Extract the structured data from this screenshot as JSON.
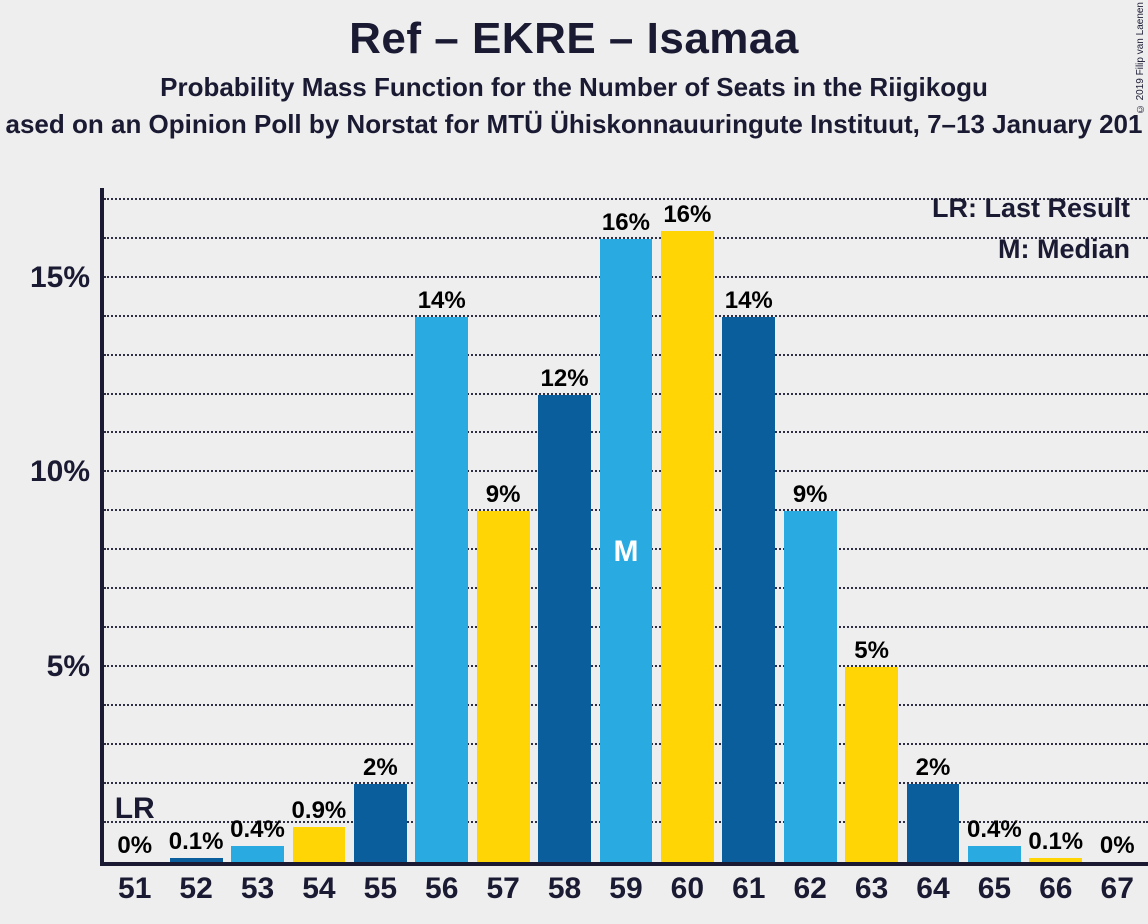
{
  "titles": {
    "main": "Ref – EKRE – Isamaa",
    "sub1": "Probability Mass Function for the Number of Seats in the Riigikogu",
    "sub2": "ased on an Opinion Poll by Norstat for MTÜ Ühiskonnauuringute Instituut, 7–13 January 201"
  },
  "legend": {
    "lr": "LR: Last Result",
    "m": "M: Median"
  },
  "annotations": {
    "lr_text": "LR",
    "m_text": "M"
  },
  "copyright": "© 2019 Filip van Laenen",
  "chart": {
    "type": "bar",
    "background_color": "#eeeeee",
    "axis_color": "#1a1a33",
    "grid_color": "#1a1a33",
    "y_max_percent": 17.3,
    "y_ticks": [
      {
        "value": 5,
        "label": "5%"
      },
      {
        "value": 10,
        "label": "10%"
      },
      {
        "value": 15,
        "label": "15%"
      }
    ],
    "y_minor_step": 1,
    "colors": {
      "dark": "#0b5e9c",
      "light": "#29abe2",
      "yellow": "#ffd506"
    },
    "lr_category": "51",
    "m_category": "59",
    "bars": [
      {
        "x": "51",
        "value": 0,
        "label": "0%",
        "color_key": "yellow"
      },
      {
        "x": "52",
        "value": 0.1,
        "label": "0.1%",
        "color_key": "dark"
      },
      {
        "x": "53",
        "value": 0.4,
        "label": "0.4%",
        "color_key": "light"
      },
      {
        "x": "54",
        "value": 0.9,
        "label": "0.9%",
        "color_key": "yellow"
      },
      {
        "x": "55",
        "value": 2,
        "label": "2%",
        "color_key": "dark"
      },
      {
        "x": "56",
        "value": 14,
        "label": "14%",
        "color_key": "light"
      },
      {
        "x": "57",
        "value": 9,
        "label": "9%",
        "color_key": "yellow"
      },
      {
        "x": "58",
        "value": 12,
        "label": "12%",
        "color_key": "dark"
      },
      {
        "x": "59",
        "value": 16,
        "label": "16%",
        "color_key": "light"
      },
      {
        "x": "60",
        "value": 16.2,
        "label": "16%",
        "color_key": "yellow"
      },
      {
        "x": "61",
        "value": 14,
        "label": "14%",
        "color_key": "dark"
      },
      {
        "x": "62",
        "value": 9,
        "label": "9%",
        "color_key": "light"
      },
      {
        "x": "63",
        "value": 5,
        "label": "5%",
        "color_key": "yellow"
      },
      {
        "x": "64",
        "value": 2,
        "label": "2%",
        "color_key": "dark"
      },
      {
        "x": "65",
        "value": 0.4,
        "label": "0.4%",
        "color_key": "light"
      },
      {
        "x": "66",
        "value": 0.1,
        "label": "0.1%",
        "color_key": "yellow"
      },
      {
        "x": "67",
        "value": 0,
        "label": "0%",
        "color_key": "dark"
      }
    ]
  }
}
